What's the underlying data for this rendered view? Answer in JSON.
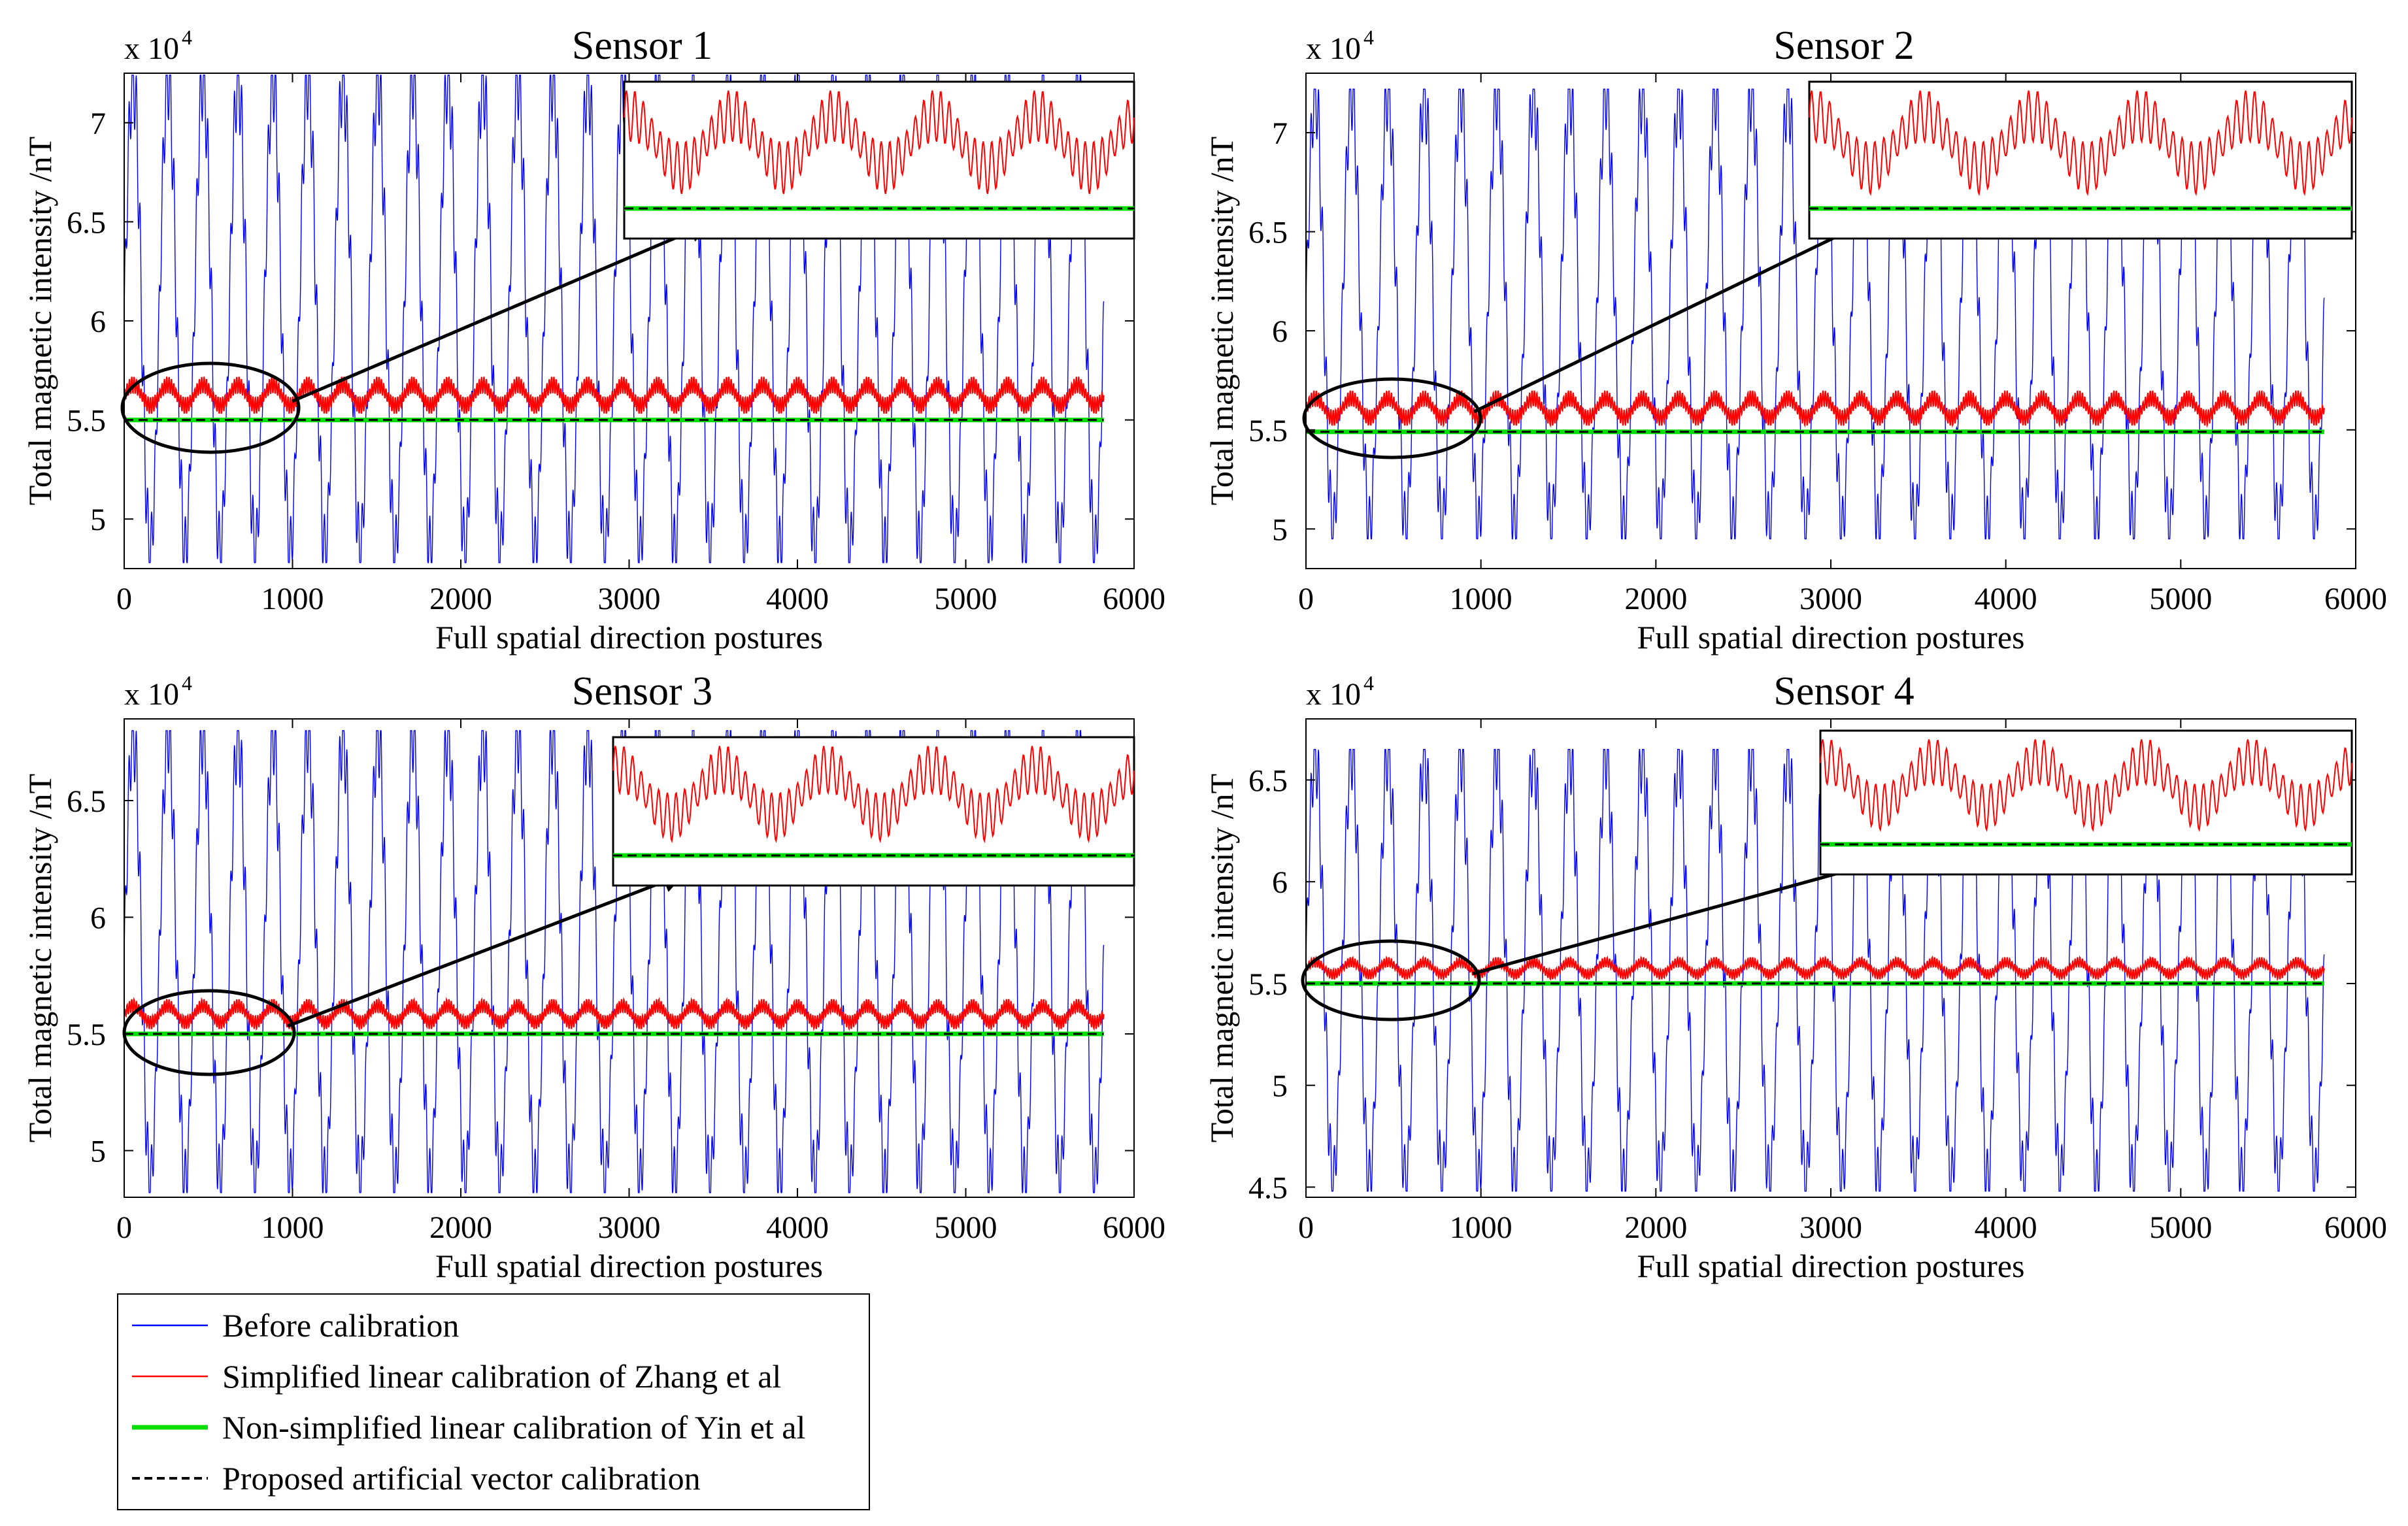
{
  "legend": {
    "items": [
      {
        "label": "Before calibration",
        "color": "#0000ff",
        "style": "solid-thin"
      },
      {
        "label": "Simplified linear calibration of Zhang et al",
        "color": "#ff0000",
        "style": "solid-thin"
      },
      {
        "label": "Non-simplified linear calibration of Yin et al",
        "color": "#00dd00",
        "style": "solid-thick"
      },
      {
        "label": "Proposed artificial vector calibration",
        "color": "#000000",
        "style": "dashed"
      }
    ]
  },
  "chart_data": [
    {
      "type": "line",
      "title": "Sensor 1",
      "xlabel": "Full spatial direction postures",
      "ylabel": "Total magnetic intensity /nT",
      "y_exponent_label": "x 10",
      "y_exponent_power": "4",
      "xlim": [
        0,
        6000
      ],
      "ylim": [
        4.75,
        7.25
      ],
      "xticks": [
        0,
        1000,
        2000,
        3000,
        4000,
        5000,
        6000
      ],
      "yticks": [
        5,
        5.5,
        6,
        6.5,
        7
      ],
      "grid": false,
      "series": [
        {
          "name": "Before calibration",
          "color": "#0000ff",
          "x_range": [
            0,
            5820
          ],
          "cycles": 28,
          "min": 4.78,
          "max": 7.24
        },
        {
          "name": "Simplified linear calibration of Zhang et al",
          "color": "#ff0000",
          "x_range": [
            0,
            5820
          ],
          "min": 5.53,
          "max": 5.72
        },
        {
          "name": "Non-simplified linear calibration of Yin et al",
          "color": "#00dd00",
          "x_range": [
            0,
            5820
          ],
          "value": 5.5
        },
        {
          "name": "Proposed artificial vector calibration",
          "color": "#000000",
          "x_range": [
            0,
            5820
          ],
          "value": 5.5
        }
      ]
    },
    {
      "type": "line",
      "title": "Sensor 2",
      "xlabel": "Full spatial direction postures",
      "ylabel": "Total magnetic intensity /nT",
      "y_exponent_label": "x 10",
      "y_exponent_power": "4",
      "xlim": [
        0,
        6000
      ],
      "ylim": [
        4.8,
        7.3
      ],
      "xticks": [
        0,
        1000,
        2000,
        3000,
        4000,
        5000,
        6000
      ],
      "yticks": [
        5,
        5.5,
        6,
        6.5,
        7
      ],
      "grid": false,
      "series": [
        {
          "name": "Before calibration",
          "color": "#0000ff",
          "x_range": [
            0,
            5820
          ],
          "cycles": 28,
          "min": 4.95,
          "max": 7.22
        },
        {
          "name": "Simplified linear calibration of Zhang et al",
          "color": "#ff0000",
          "x_range": [
            0,
            5820
          ],
          "min": 5.52,
          "max": 5.7
        },
        {
          "name": "Non-simplified linear calibration of Yin et al",
          "color": "#00dd00",
          "x_range": [
            0,
            5820
          ],
          "value": 5.49
        },
        {
          "name": "Proposed artificial vector calibration",
          "color": "#000000",
          "x_range": [
            0,
            5820
          ],
          "value": 5.49
        }
      ]
    },
    {
      "type": "line",
      "title": "Sensor 3",
      "xlabel": "Full spatial direction postures",
      "ylabel": "Total magnetic intensity /nT",
      "y_exponent_label": "x 10",
      "y_exponent_power": "4",
      "xlim": [
        0,
        6000
      ],
      "ylim": [
        4.8,
        6.85
      ],
      "xticks": [
        0,
        1000,
        2000,
        3000,
        4000,
        5000,
        6000
      ],
      "yticks": [
        5,
        5.5,
        6,
        6.5
      ],
      "grid": false,
      "series": [
        {
          "name": "Before calibration",
          "color": "#0000ff",
          "x_range": [
            0,
            5820
          ],
          "cycles": 28,
          "min": 4.82,
          "max": 6.8
        },
        {
          "name": "Simplified linear calibration of Zhang et al",
          "color": "#ff0000",
          "x_range": [
            0,
            5820
          ],
          "min": 5.52,
          "max": 5.65
        },
        {
          "name": "Non-simplified linear calibration of Yin et al",
          "color": "#00dd00",
          "x_range": [
            0,
            5820
          ],
          "value": 5.5
        },
        {
          "name": "Proposed artificial vector calibration",
          "color": "#000000",
          "x_range": [
            0,
            5820
          ],
          "value": 5.5
        }
      ]
    },
    {
      "type": "line",
      "title": "Sensor 4",
      "xlabel": "Full spatial direction postures",
      "ylabel": "Total magnetic intensity /nT",
      "y_exponent_label": "x 10",
      "y_exponent_power": "4",
      "xlim": [
        0,
        6000
      ],
      "ylim": [
        4.45,
        6.8
      ],
      "xticks": [
        0,
        1000,
        2000,
        3000,
        4000,
        5000,
        6000
      ],
      "yticks": [
        4.5,
        5,
        5.5,
        6,
        6.5
      ],
      "grid": false,
      "series": [
        {
          "name": "Before calibration",
          "color": "#0000ff",
          "x_range": [
            0,
            5820
          ],
          "cycles": 28,
          "min": 4.48,
          "max": 6.65
        },
        {
          "name": "Simplified linear calibration of Zhang et al",
          "color": "#ff0000",
          "x_range": [
            0,
            5820
          ],
          "min": 5.52,
          "max": 5.63
        },
        {
          "name": "Non-simplified linear calibration of Yin et al",
          "color": "#00dd00",
          "x_range": [
            0,
            5820
          ],
          "value": 5.5
        },
        {
          "name": "Proposed artificial vector calibration",
          "color": "#000000",
          "x_range": [
            0,
            5820
          ],
          "value": 5.5
        }
      ]
    }
  ]
}
